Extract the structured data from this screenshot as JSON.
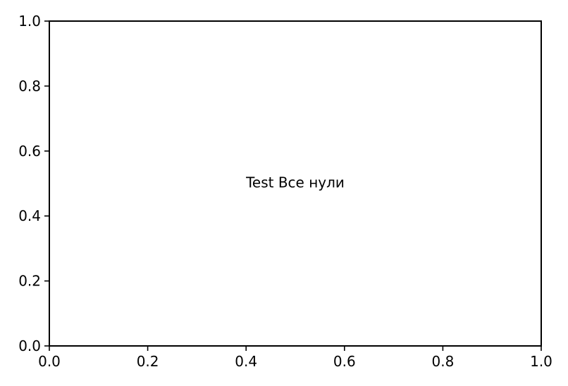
{
  "chart_data": {
    "type": "line",
    "title": "",
    "xlabel": "",
    "ylabel": "",
    "xlim": [
      0.0,
      1.0
    ],
    "ylim": [
      0.0,
      1.0
    ],
    "x_ticks": [
      0.0,
      0.2,
      0.4,
      0.6,
      0.8,
      1.0
    ],
    "x_tick_labels": [
      "0.0",
      "0.2",
      "0.4",
      "0.6",
      "0.8",
      "1.0"
    ],
    "y_ticks": [
      0.0,
      0.2,
      0.4,
      0.6,
      0.8,
      1.0
    ],
    "y_tick_labels": [
      "0.0",
      "0.2",
      "0.4",
      "0.6",
      "0.8",
      "1.0"
    ],
    "grid": false,
    "series": [],
    "annotation": {
      "text": "Test Все нули",
      "x": 0.5,
      "y": 0.5
    }
  },
  "colors": {
    "background": "#ffffff",
    "axes": "#000000",
    "text": "#000000"
  }
}
